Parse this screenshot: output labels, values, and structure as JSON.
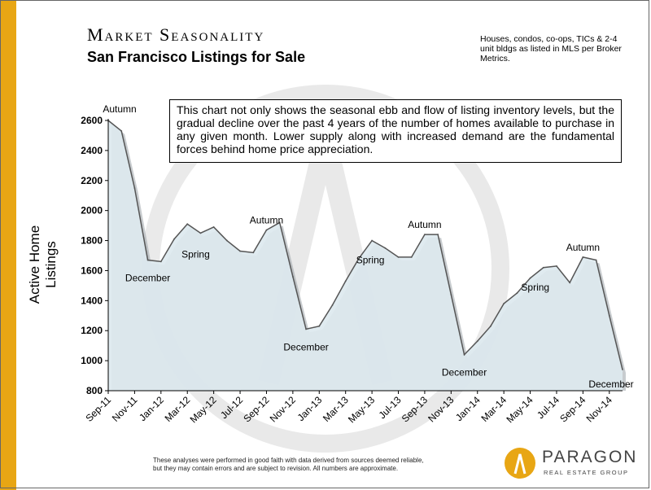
{
  "header": {
    "title": "Market Seasonality",
    "subtitle": "San Francisco Listings for Sale",
    "source_note": "Houses, condos, co-ops, TICs & 2-4 unit bldgs as listed in MLS per Broker Metrics."
  },
  "callout": "This chart not only shows the seasonal ebb and flow of listing inventory levels, but the gradual decline over the past 4 years of the number of homes available to purchase in any given month. Lower supply along with increased demand are the fundamental forces behind home price appreciation.",
  "footer": {
    "line1": "These analyses were performed in good faith with data derived from sources deemed reliable,",
    "line2": "but they may contain errors and are subject to revision. All numbers are approximate."
  },
  "logo": {
    "name": "PARAGON",
    "tagline": "REAL ESTATE GROUP"
  },
  "colors": {
    "accent": "#e8a614",
    "area_fill": "#dde9ef",
    "area_line": "#555555"
  },
  "chart_data": {
    "type": "area",
    "ylabel": "Active Home Listings",
    "ylim": [
      800,
      2600
    ],
    "yticks": [
      800,
      1000,
      1200,
      1400,
      1600,
      1800,
      2000,
      2200,
      2400,
      2600
    ],
    "xtick_labels": [
      "Sep-11",
      "Nov-11",
      "Jan-12",
      "Mar-12",
      "May-12",
      "Jul-12",
      "Sep-12",
      "Nov-12",
      "Jan-13",
      "Mar-13",
      "May-13",
      "Jul-13",
      "Sep-13",
      "Nov-13",
      "Jan-14",
      "Mar-14",
      "May-14",
      "Jul-14",
      "Sep-14",
      "Nov-14"
    ],
    "x": [
      "Sep-11",
      "Oct-11",
      "Nov-11",
      "Dec-11",
      "Jan-12",
      "Feb-12",
      "Mar-12",
      "Apr-12",
      "May-12",
      "Jun-12",
      "Jul-12",
      "Aug-12",
      "Sep-12",
      "Oct-12",
      "Nov-12",
      "Dec-12",
      "Jan-13",
      "Feb-13",
      "Mar-13",
      "Apr-13",
      "May-13",
      "Jun-13",
      "Jul-13",
      "Aug-13",
      "Sep-13",
      "Oct-13",
      "Nov-13",
      "Dec-13",
      "Jan-14",
      "Feb-14",
      "Mar-14",
      "Apr-14",
      "May-14",
      "Jun-14",
      "Jul-14",
      "Aug-14",
      "Sep-14",
      "Oct-14",
      "Nov-14",
      "Dec-14"
    ],
    "values": [
      2600,
      2530,
      2150,
      1670,
      1660,
      1810,
      1910,
      1850,
      1890,
      1800,
      1730,
      1720,
      1870,
      1920,
      1560,
      1210,
      1230,
      1370,
      1530,
      1680,
      1800,
      1750,
      1690,
      1690,
      1840,
      1840,
      1440,
      1040,
      1130,
      1230,
      1380,
      1450,
      1550,
      1620,
      1630,
      1520,
      1690,
      1670,
      1300,
      940
    ],
    "annotations": [
      {
        "text": "Autumn",
        "x": "Sep-11"
      },
      {
        "text": "December",
        "x": "Dec-11"
      },
      {
        "text": "Spring",
        "x": "Apr-12"
      },
      {
        "text": "Autumn",
        "x": "Sep-12"
      },
      {
        "text": "December",
        "x": "Dec-12"
      },
      {
        "text": "Spring",
        "x": "May-13"
      },
      {
        "text": "Autumn",
        "x": "Sep-13"
      },
      {
        "text": "December",
        "x": "Dec-13"
      },
      {
        "text": "Spring",
        "x": "Jun-14"
      },
      {
        "text": "Autumn",
        "x": "Sep-14"
      },
      {
        "text": "December",
        "x": "Dec-14"
      }
    ]
  }
}
